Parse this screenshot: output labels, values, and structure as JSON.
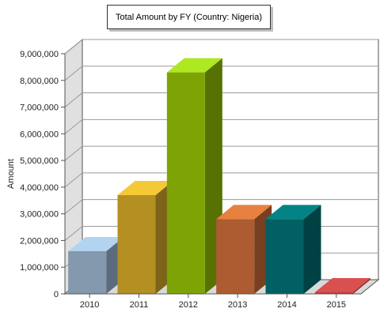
{
  "chart_data": {
    "type": "bar",
    "title": "Total Amount by FY (Country: Nigeria)",
    "xlabel": "",
    "ylabel": "Amount",
    "categories": [
      "2010",
      "2011",
      "2012",
      "2013",
      "2014",
      "2015"
    ],
    "values": [
      1600000,
      3700000,
      8300000,
      2800000,
      2800000,
      60000
    ],
    "ylim": [
      0,
      9000000
    ],
    "yticks": [
      "0",
      "1,000,000",
      "2,000,000",
      "3,000,000",
      "4,000,000",
      "5,000,000",
      "6,000,000",
      "7,000,000",
      "8,000,000",
      "9,000,000"
    ],
    "grid": true,
    "legend": "none",
    "colors": [
      {
        "front": "#8498ae",
        "top": "#b2d4f0",
        "side": "#5b6b7d"
      },
      {
        "front": "#b48f22",
        "top": "#f5c838",
        "side": "#7d6419"
      },
      {
        "front": "#7ea305",
        "top": "#aee820",
        "side": "#577203"
      },
      {
        "front": "#ad5b30",
        "top": "#e88040",
        "side": "#793f21"
      },
      {
        "front": "#016062",
        "top": "#038385",
        "side": "#004244"
      },
      {
        "front": "#c43b3b",
        "top": "#d95050",
        "side": "#8a2828"
      }
    ]
  }
}
